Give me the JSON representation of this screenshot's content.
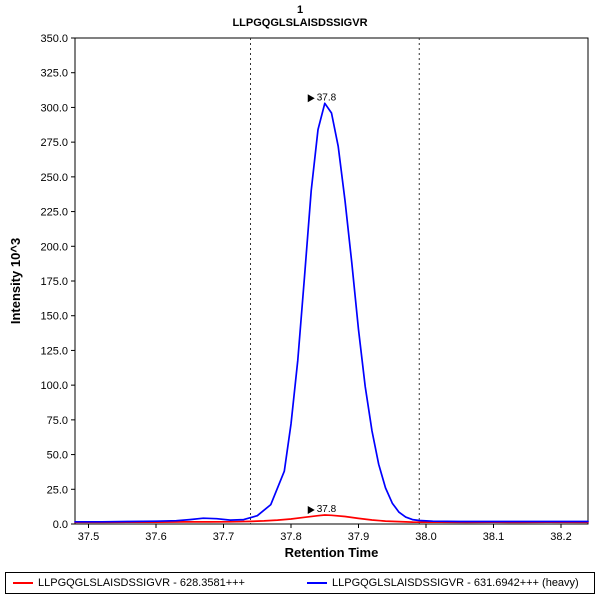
{
  "chart_data": {
    "type": "line",
    "title": "1",
    "subtitle": "LLPGQGLSLAISDSSIGVR",
    "xlabel": "Retention Time",
    "ylabel": "Intensity 10^3",
    "xlim": [
      37.48,
      38.24
    ],
    "ylim": [
      0,
      350
    ],
    "grid": false,
    "legend_position": "bottom",
    "xticks": [
      37.5,
      37.6,
      37.7,
      37.8,
      37.9,
      38.0,
      38.1,
      38.2
    ],
    "xtick_labels": [
      "37.5",
      "37.6",
      "37.7",
      "37.8",
      "37.9",
      "38.0",
      "38.1",
      "38.2"
    ],
    "yticks": [
      0,
      25,
      50,
      75,
      100,
      125,
      150,
      175,
      200,
      225,
      250,
      275,
      300,
      325,
      350
    ],
    "ytick_labels": [
      "0.0",
      "25.0",
      "50.0",
      "75.0",
      "100.0",
      "125.0",
      "150.0",
      "175.0",
      "200.0",
      "225.0",
      "250.0",
      "275.0",
      "300.0",
      "325.0",
      "350.0"
    ],
    "peak_boundaries": [
      37.74,
      37.99
    ],
    "boundary_color": "#333333",
    "series": [
      {
        "name": "LLPGQGLSLAISDSSIGVR - 628.3581+++",
        "color": "#ff0000",
        "peak": {
          "label": "37.8",
          "x": 37.85,
          "y": 6.5
        },
        "points": [
          [
            37.48,
            1.2
          ],
          [
            37.52,
            1.2
          ],
          [
            37.56,
            1.3
          ],
          [
            37.6,
            1.3
          ],
          [
            37.64,
            1.5
          ],
          [
            37.68,
            1.5
          ],
          [
            37.71,
            1.6
          ],
          [
            37.74,
            1.9
          ],
          [
            37.76,
            2.2
          ],
          [
            37.78,
            2.8
          ],
          [
            37.8,
            3.6
          ],
          [
            37.82,
            4.8
          ],
          [
            37.84,
            6.0
          ],
          [
            37.85,
            6.5
          ],
          [
            37.86,
            6.3
          ],
          [
            37.88,
            5.4
          ],
          [
            37.9,
            4.0
          ],
          [
            37.92,
            2.9
          ],
          [
            37.94,
            2.1
          ],
          [
            37.96,
            1.7
          ],
          [
            37.98,
            1.4
          ],
          [
            38.02,
            1.3
          ],
          [
            38.06,
            1.2
          ],
          [
            38.1,
            1.3
          ],
          [
            38.14,
            1.2
          ],
          [
            38.18,
            1.3
          ],
          [
            38.24,
            1.2
          ]
        ]
      },
      {
        "name": "LLPGQGLSLAISDSSIGVR - 631.6942+++ (heavy)",
        "color": "#0000ff",
        "peak": {
          "label": "37.8",
          "x": 37.85,
          "y": 303
        },
        "points": [
          [
            37.48,
            1.6
          ],
          [
            37.52,
            1.6
          ],
          [
            37.56,
            1.8
          ],
          [
            37.6,
            2.0
          ],
          [
            37.63,
            2.4
          ],
          [
            37.65,
            3.2
          ],
          [
            37.67,
            4.2
          ],
          [
            37.69,
            3.8
          ],
          [
            37.71,
            2.8
          ],
          [
            37.73,
            3.2
          ],
          [
            37.75,
            6.0
          ],
          [
            37.77,
            14
          ],
          [
            37.79,
            38
          ],
          [
            37.8,
            72
          ],
          [
            37.81,
            118
          ],
          [
            37.82,
            178
          ],
          [
            37.83,
            240
          ],
          [
            37.84,
            284
          ],
          [
            37.85,
            303
          ],
          [
            37.86,
            296
          ],
          [
            37.87,
            272
          ],
          [
            37.88,
            233
          ],
          [
            37.89,
            188
          ],
          [
            37.9,
            140
          ],
          [
            37.91,
            99
          ],
          [
            37.92,
            67
          ],
          [
            37.93,
            43
          ],
          [
            37.94,
            26
          ],
          [
            37.95,
            15
          ],
          [
            37.96,
            8.5
          ],
          [
            37.97,
            5
          ],
          [
            37.98,
            3.2
          ],
          [
            37.99,
            2.5
          ],
          [
            38.01,
            2.0
          ],
          [
            38.05,
            1.8
          ],
          [
            38.1,
            1.8
          ],
          [
            38.15,
            1.8
          ],
          [
            38.2,
            1.8
          ],
          [
            38.24,
            1.8
          ]
        ]
      }
    ]
  }
}
